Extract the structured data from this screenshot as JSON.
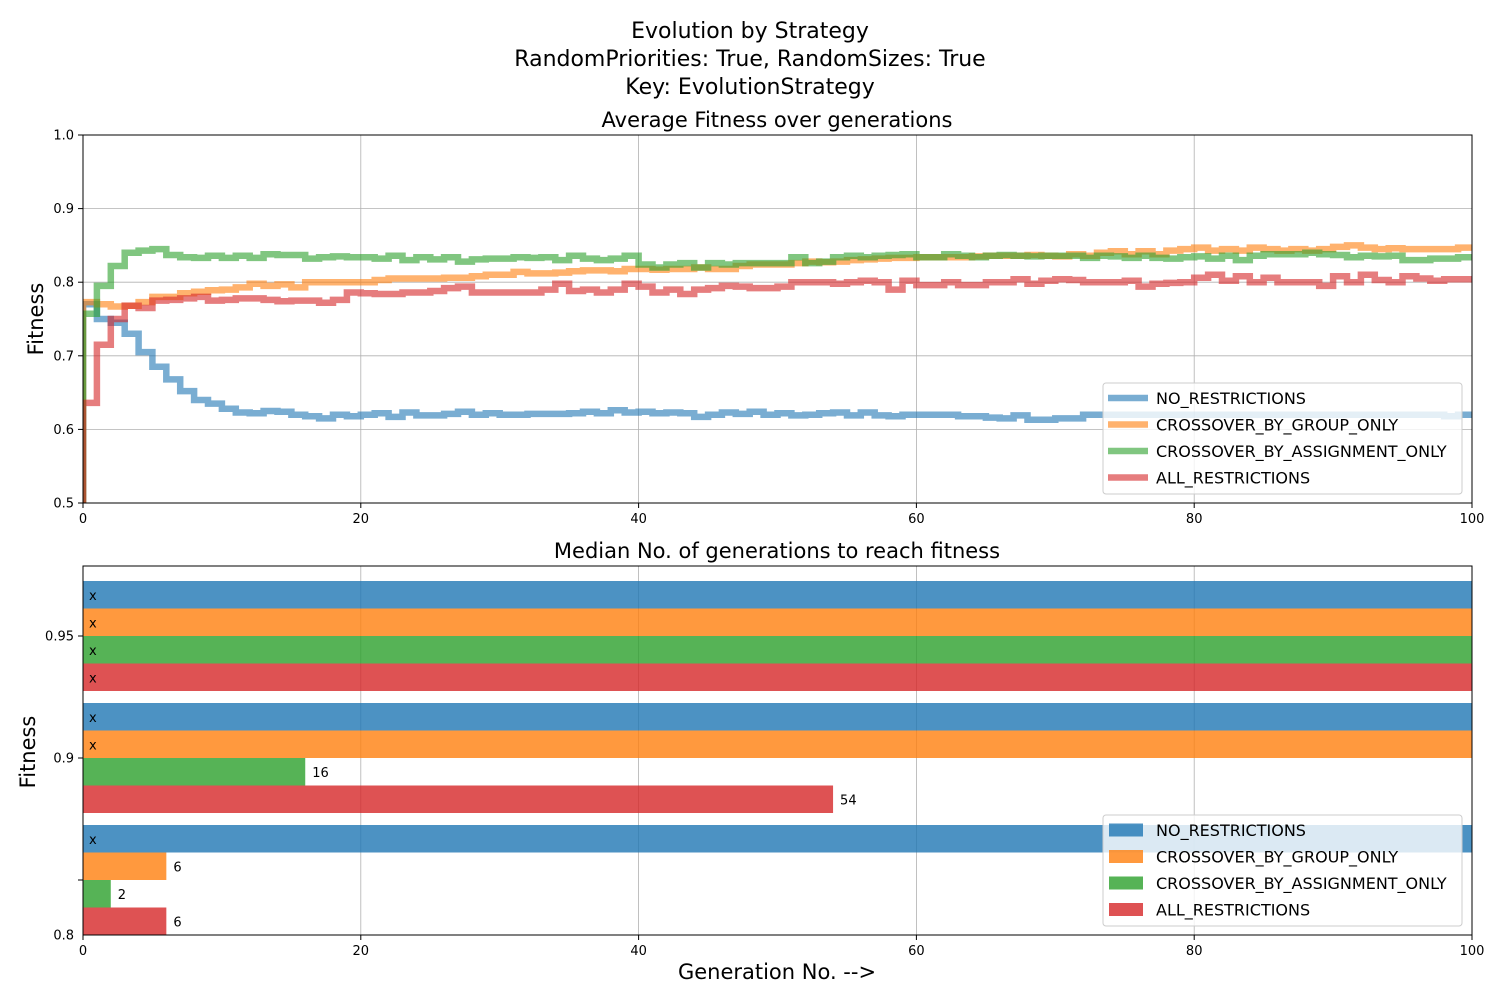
{
  "figure": {
    "suptitle_lines": [
      "Evolution by Strategy",
      "RandomPriorities: True, RandomSizes: True",
      "Key: EvolutionStrategy"
    ],
    "xlabel": "Generation No. -->"
  },
  "colors": {
    "NO_RESTRICTIONS": "#1f77b4",
    "CROSSOVER_BY_GROUP_ONLY": "#ff7f0e",
    "CROSSOVER_BY_ASSIGNMENT_ONLY": "#2ca02c",
    "ALL_RESTRICTIONS": "#d62728"
  },
  "chart_data": [
    {
      "type": "line",
      "title": "Average Fitness over generations",
      "xlabel": "",
      "ylabel": "Fitness",
      "xlim": [
        0,
        100
      ],
      "ylim": [
        0.5,
        1.0
      ],
      "xticks": [
        "0",
        "20",
        "40",
        "60",
        "80",
        "100"
      ],
      "yticks": [
        "0.5",
        "0.6",
        "0.7",
        "0.8",
        "0.9",
        "1.0"
      ],
      "grid": true,
      "step": true,
      "legend_position": "lower-right",
      "series": [
        {
          "name": "NO_RESTRICTIONS",
          "x": [
            0,
            1,
            2,
            3,
            4,
            5,
            6,
            7,
            8,
            9,
            10,
            11,
            12,
            13,
            14,
            15,
            16,
            17,
            18,
            19,
            20,
            21,
            22,
            23,
            24,
            25,
            26,
            27,
            28,
            29,
            30,
            31,
            32,
            33,
            34,
            35,
            36,
            37,
            38,
            39,
            40,
            41,
            42,
            43,
            44,
            45,
            46,
            47,
            48,
            49,
            50,
            51,
            52,
            53,
            54,
            55,
            56,
            57,
            58,
            59,
            60,
            61,
            62,
            63,
            64,
            65,
            66,
            67,
            68,
            69,
            70,
            71,
            72,
            73,
            74,
            75,
            76,
            77,
            78,
            79,
            80,
            81,
            82,
            83,
            84,
            85,
            86,
            87,
            88,
            89,
            90,
            91,
            92,
            93,
            94,
            95,
            96,
            97,
            98,
            99,
            100
          ],
          "y": [
            0.77,
            0.75,
            0.745,
            0.73,
            0.705,
            0.685,
            0.668,
            0.652,
            0.64,
            0.635,
            0.628,
            0.623,
            0.622,
            0.625,
            0.624,
            0.62,
            0.618,
            0.615,
            0.62,
            0.618,
            0.62,
            0.622,
            0.617,
            0.623,
            0.619,
            0.619,
            0.621,
            0.624,
            0.62,
            0.622,
            0.62,
            0.62,
            0.621,
            0.621,
            0.621,
            0.622,
            0.624,
            0.622,
            0.626,
            0.623,
            0.624,
            0.622,
            0.623,
            0.622,
            0.617,
            0.62,
            0.623,
            0.621,
            0.624,
            0.62,
            0.622,
            0.619,
            0.62,
            0.622,
            0.623,
            0.619,
            0.623,
            0.619,
            0.618,
            0.62,
            0.62,
            0.62,
            0.62,
            0.618,
            0.618,
            0.616,
            0.615,
            0.619,
            0.613,
            0.613,
            0.615,
            0.615,
            0.62,
            0.62,
            0.62,
            0.62,
            0.62,
            0.62,
            0.62,
            0.62,
            0.62,
            0.62,
            0.62,
            0.62,
            0.62,
            0.62,
            0.62,
            0.62,
            0.62,
            0.62,
            0.62,
            0.62,
            0.62,
            0.62,
            0.62,
            0.62,
            0.62,
            0.62,
            0.618,
            0.62,
            0.62
          ]
        },
        {
          "name": "CROSSOVER_BY_GROUP_ONLY",
          "x": [
            0,
            1,
            2,
            3,
            4,
            5,
            6,
            7,
            8,
            9,
            10,
            11,
            12,
            13,
            14,
            15,
            16,
            17,
            18,
            19,
            20,
            21,
            22,
            23,
            24,
            25,
            26,
            27,
            28,
            29,
            30,
            31,
            32,
            33,
            34,
            35,
            36,
            37,
            38,
            39,
            40,
            41,
            42,
            43,
            44,
            45,
            46,
            47,
            48,
            49,
            50,
            51,
            52,
            53,
            54,
            55,
            56,
            57,
            58,
            59,
            60,
            61,
            62,
            63,
            64,
            65,
            66,
            67,
            68,
            69,
            70,
            71,
            72,
            73,
            74,
            75,
            76,
            77,
            78,
            79,
            80,
            81,
            82,
            83,
            84,
            85,
            86,
            87,
            88,
            89,
            90,
            91,
            92,
            93,
            94,
            95,
            96,
            97,
            98,
            99,
            100
          ],
          "y": [
            0.773,
            0.77,
            0.767,
            0.768,
            0.773,
            0.78,
            0.78,
            0.785,
            0.787,
            0.789,
            0.79,
            0.793,
            0.798,
            0.795,
            0.797,
            0.793,
            0.8,
            0.8,
            0.8,
            0.8,
            0.8,
            0.803,
            0.805,
            0.805,
            0.805,
            0.805,
            0.806,
            0.806,
            0.808,
            0.81,
            0.81,
            0.814,
            0.812,
            0.812,
            0.813,
            0.815,
            0.816,
            0.816,
            0.815,
            0.818,
            0.818,
            0.817,
            0.818,
            0.818,
            0.82,
            0.818,
            0.818,
            0.822,
            0.824,
            0.824,
            0.824,
            0.826,
            0.828,
            0.827,
            0.828,
            0.83,
            0.831,
            0.832,
            0.833,
            0.833,
            0.834,
            0.834,
            0.834,
            0.834,
            0.835,
            0.836,
            0.836,
            0.836,
            0.837,
            0.836,
            0.835,
            0.838,
            0.836,
            0.84,
            0.842,
            0.838,
            0.842,
            0.838,
            0.843,
            0.845,
            0.847,
            0.843,
            0.845,
            0.843,
            0.847,
            0.845,
            0.843,
            0.845,
            0.843,
            0.845,
            0.848,
            0.85,
            0.847,
            0.845,
            0.846,
            0.845,
            0.845,
            0.845,
            0.845,
            0.847,
            0.847
          ]
        },
        {
          "name": "CROSSOVER_BY_ASSIGNMENT_ONLY",
          "x": [
            0,
            1,
            2,
            3,
            4,
            5,
            6,
            7,
            8,
            9,
            10,
            11,
            12,
            13,
            14,
            15,
            16,
            17,
            18,
            19,
            20,
            21,
            22,
            23,
            24,
            25,
            26,
            27,
            28,
            29,
            30,
            31,
            32,
            33,
            34,
            35,
            36,
            37,
            38,
            39,
            40,
            41,
            42,
            43,
            44,
            45,
            46,
            47,
            48,
            49,
            50,
            51,
            52,
            53,
            54,
            55,
            56,
            57,
            58,
            59,
            60,
            61,
            62,
            63,
            64,
            65,
            66,
            67,
            68,
            69,
            70,
            71,
            72,
            73,
            74,
            75,
            76,
            77,
            78,
            79,
            80,
            81,
            82,
            83,
            84,
            85,
            86,
            87,
            88,
            89,
            90,
            91,
            92,
            93,
            94,
            95,
            96,
            97,
            98,
            99,
            100
          ],
          "y": [
            0.757,
            0.795,
            0.822,
            0.84,
            0.843,
            0.845,
            0.837,
            0.834,
            0.833,
            0.836,
            0.833,
            0.836,
            0.833,
            0.838,
            0.837,
            0.837,
            0.832,
            0.834,
            0.835,
            0.834,
            0.834,
            0.832,
            0.836,
            0.83,
            0.834,
            0.831,
            0.834,
            0.828,
            0.831,
            0.832,
            0.832,
            0.834,
            0.833,
            0.834,
            0.83,
            0.836,
            0.832,
            0.83,
            0.832,
            0.836,
            0.824,
            0.82,
            0.824,
            0.826,
            0.82,
            0.826,
            0.824,
            0.826,
            0.826,
            0.826,
            0.826,
            0.834,
            0.826,
            0.828,
            0.834,
            0.836,
            0.834,
            0.836,
            0.837,
            0.838,
            0.834,
            0.834,
            0.838,
            0.836,
            0.834,
            0.836,
            0.837,
            0.836,
            0.835,
            0.836,
            0.836,
            0.836,
            0.833,
            0.836,
            0.835,
            0.833,
            0.836,
            0.833,
            0.832,
            0.834,
            0.835,
            0.832,
            0.836,
            0.83,
            0.836,
            0.838,
            0.838,
            0.838,
            0.84,
            0.838,
            0.837,
            0.834,
            0.836,
            0.835,
            0.836,
            0.83,
            0.83,
            0.832,
            0.832,
            0.834,
            0.834
          ]
        },
        {
          "name": "ALL_RESTRICTIONS",
          "x": [
            0,
            1,
            2,
            3,
            4,
            5,
            6,
            7,
            8,
            9,
            10,
            11,
            12,
            13,
            14,
            15,
            16,
            17,
            18,
            19,
            20,
            21,
            22,
            23,
            24,
            25,
            26,
            27,
            28,
            29,
            30,
            31,
            32,
            33,
            34,
            35,
            36,
            37,
            38,
            39,
            40,
            41,
            42,
            43,
            44,
            45,
            46,
            47,
            48,
            49,
            50,
            51,
            52,
            53,
            54,
            55,
            56,
            57,
            58,
            59,
            60,
            61,
            62,
            63,
            64,
            65,
            66,
            67,
            68,
            69,
            70,
            71,
            72,
            73,
            74,
            75,
            76,
            77,
            78,
            79,
            80,
            81,
            82,
            83,
            84,
            85,
            86,
            87,
            88,
            89,
            90,
            91,
            92,
            93,
            94,
            95,
            96,
            97,
            98,
            99,
            100
          ],
          "y": [
            0.636,
            0.715,
            0.75,
            0.768,
            0.765,
            0.775,
            0.776,
            0.778,
            0.78,
            0.775,
            0.776,
            0.778,
            0.778,
            0.776,
            0.774,
            0.775,
            0.775,
            0.772,
            0.776,
            0.786,
            0.785,
            0.784,
            0.784,
            0.786,
            0.786,
            0.788,
            0.792,
            0.794,
            0.786,
            0.786,
            0.786,
            0.786,
            0.786,
            0.79,
            0.798,
            0.788,
            0.79,
            0.786,
            0.79,
            0.798,
            0.794,
            0.786,
            0.79,
            0.784,
            0.79,
            0.792,
            0.795,
            0.794,
            0.792,
            0.792,
            0.794,
            0.8,
            0.8,
            0.8,
            0.798,
            0.8,
            0.802,
            0.8,
            0.79,
            0.802,
            0.796,
            0.796,
            0.8,
            0.796,
            0.796,
            0.8,
            0.8,
            0.804,
            0.798,
            0.802,
            0.804,
            0.803,
            0.8,
            0.8,
            0.8,
            0.802,
            0.794,
            0.798,
            0.799,
            0.8,
            0.806,
            0.81,
            0.802,
            0.808,
            0.8,
            0.806,
            0.8,
            0.8,
            0.8,
            0.795,
            0.808,
            0.8,
            0.81,
            0.803,
            0.8,
            0.808,
            0.805,
            0.802,
            0.804,
            0.804,
            0.804
          ]
        }
      ]
    },
    {
      "type": "bar",
      "orientation": "horizontal",
      "title": "Median No. of generations to reach fitness",
      "xlabel": "Generation No. -->",
      "ylabel": "Fitness",
      "xlim": [
        0,
        100
      ],
      "xticks": [
        "0",
        "20",
        "40",
        "60",
        "80",
        "100"
      ],
      "categories": [
        "0.8",
        "0.9",
        "0.95"
      ],
      "grid": true,
      "legend_position": "lower-right",
      "series": [
        {
          "name": "NO_RESTRICTIONS",
          "values": [
            null,
            null,
            null
          ],
          "labels": [
            "x",
            "x",
            "x"
          ]
        },
        {
          "name": "CROSSOVER_BY_GROUP_ONLY",
          "values": [
            6,
            null,
            null
          ],
          "labels": [
            "6",
            "x",
            "x"
          ]
        },
        {
          "name": "CROSSOVER_BY_ASSIGNMENT_ONLY",
          "values": [
            2,
            16,
            null
          ],
          "labels": [
            "2",
            "16",
            "x"
          ]
        },
        {
          "name": "ALL_RESTRICTIONS",
          "values": [
            6,
            54,
            null
          ],
          "labels": [
            "6",
            "54",
            "x"
          ]
        }
      ]
    }
  ]
}
